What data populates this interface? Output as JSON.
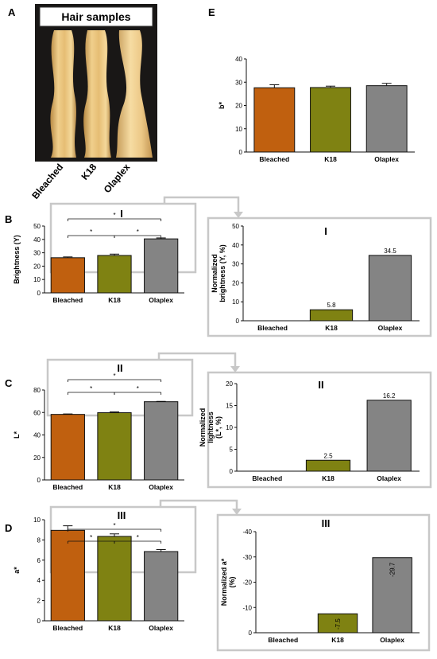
{
  "panels": {
    "A": "A",
    "B": "B",
    "C": "C",
    "D": "D",
    "E": "E"
  },
  "hair": {
    "title": "Hair samples",
    "labels": [
      "Bleached",
      "K18",
      "Olaplex"
    ]
  },
  "colors": {
    "Bleached": "#C0600F",
    "K18": "#7F8212",
    "Olaplex": "#848484",
    "frame": "#c8c8c8"
  },
  "significance_marker": "*",
  "chart_data": [
    {
      "id": "B",
      "type": "bar",
      "categories": [
        "Bleached",
        "K18",
        "Olaplex"
      ],
      "values": [
        26.3,
        28.0,
        40.4
      ],
      "errors": [
        0.6,
        1.0,
        0.7
      ],
      "ylabel": "Brightness (Y)",
      "ylim": [
        0,
        50
      ],
      "yticks": [
        "0",
        "10",
        "20",
        "30",
        "40",
        "50"
      ],
      "inset_label": "I",
      "significance": [
        "*",
        "*",
        "*"
      ]
    },
    {
      "id": "B-I",
      "type": "bar",
      "categories": [
        "Bleached",
        "K18",
        "Olaplex"
      ],
      "values": [
        0,
        5.8,
        34.5
      ],
      "value_labels": [
        "",
        "5.8",
        "34.5"
      ],
      "ylabel": [
        "Normalized",
        "brightness (Y, %)"
      ],
      "ylim": [
        0,
        50
      ],
      "yticks": [
        "0",
        "10",
        "20",
        "30",
        "40",
        "50"
      ],
      "inset_label": "I"
    },
    {
      "id": "C",
      "type": "bar",
      "categories": [
        "Bleached",
        "K18",
        "Olaplex"
      ],
      "values": [
        58.3,
        59.8,
        69.6
      ],
      "errors": [
        0.4,
        0.7,
        0.3
      ],
      "ylabel": "L*",
      "ylim": [
        0,
        80
      ],
      "yticks": [
        "0",
        "20",
        "40",
        "60",
        "80"
      ],
      "inset_label": "II",
      "significance": [
        "*",
        "*",
        "*"
      ]
    },
    {
      "id": "C-II",
      "type": "bar",
      "categories": [
        "Bleached",
        "K18",
        "Olaplex"
      ],
      "values": [
        0,
        2.5,
        16.2
      ],
      "value_labels": [
        "",
        "2.5",
        "16.2"
      ],
      "ylabel": [
        "Normalized",
        "lightness",
        "(L*, %)"
      ],
      "ylim": [
        0,
        20
      ],
      "yticks": [
        "0",
        "5",
        "10",
        "15",
        "20"
      ],
      "inset_label": "II"
    },
    {
      "id": "D",
      "type": "bar",
      "categories": [
        "Bleached",
        "K18",
        "Olaplex"
      ],
      "values": [
        8.95,
        8.35,
        6.85
      ],
      "errors": [
        0.45,
        0.25,
        0.2
      ],
      "ylabel": "a*",
      "ylim": [
        0,
        10
      ],
      "yticks": [
        "0",
        "2",
        "4",
        "6",
        "8",
        "10"
      ],
      "inset_label": "III",
      "significance": [
        "*",
        "*",
        "*"
      ]
    },
    {
      "id": "D-III",
      "type": "bar",
      "categories": [
        "Bleached",
        "K18",
        "Olaplex"
      ],
      "values": [
        0,
        -7.5,
        -29.7
      ],
      "value_labels": [
        "",
        "-7.5",
        "-29.7"
      ],
      "ylabel": [
        "Normalized a*",
        "(%)"
      ],
      "ylim": [
        -40,
        0
      ],
      "yticks": [
        "0",
        "-10",
        "-20",
        "-30",
        "-40"
      ],
      "inset_label": "III"
    },
    {
      "id": "E",
      "type": "bar",
      "categories": [
        "Bleached",
        "K18",
        "Olaplex"
      ],
      "values": [
        27.6,
        27.7,
        28.5
      ],
      "errors": [
        1.3,
        0.6,
        1.0
      ],
      "ylabel": "b*",
      "ylim": [
        0,
        40
      ],
      "yticks": [
        "0",
        "10",
        "20",
        "30",
        "40"
      ]
    }
  ]
}
